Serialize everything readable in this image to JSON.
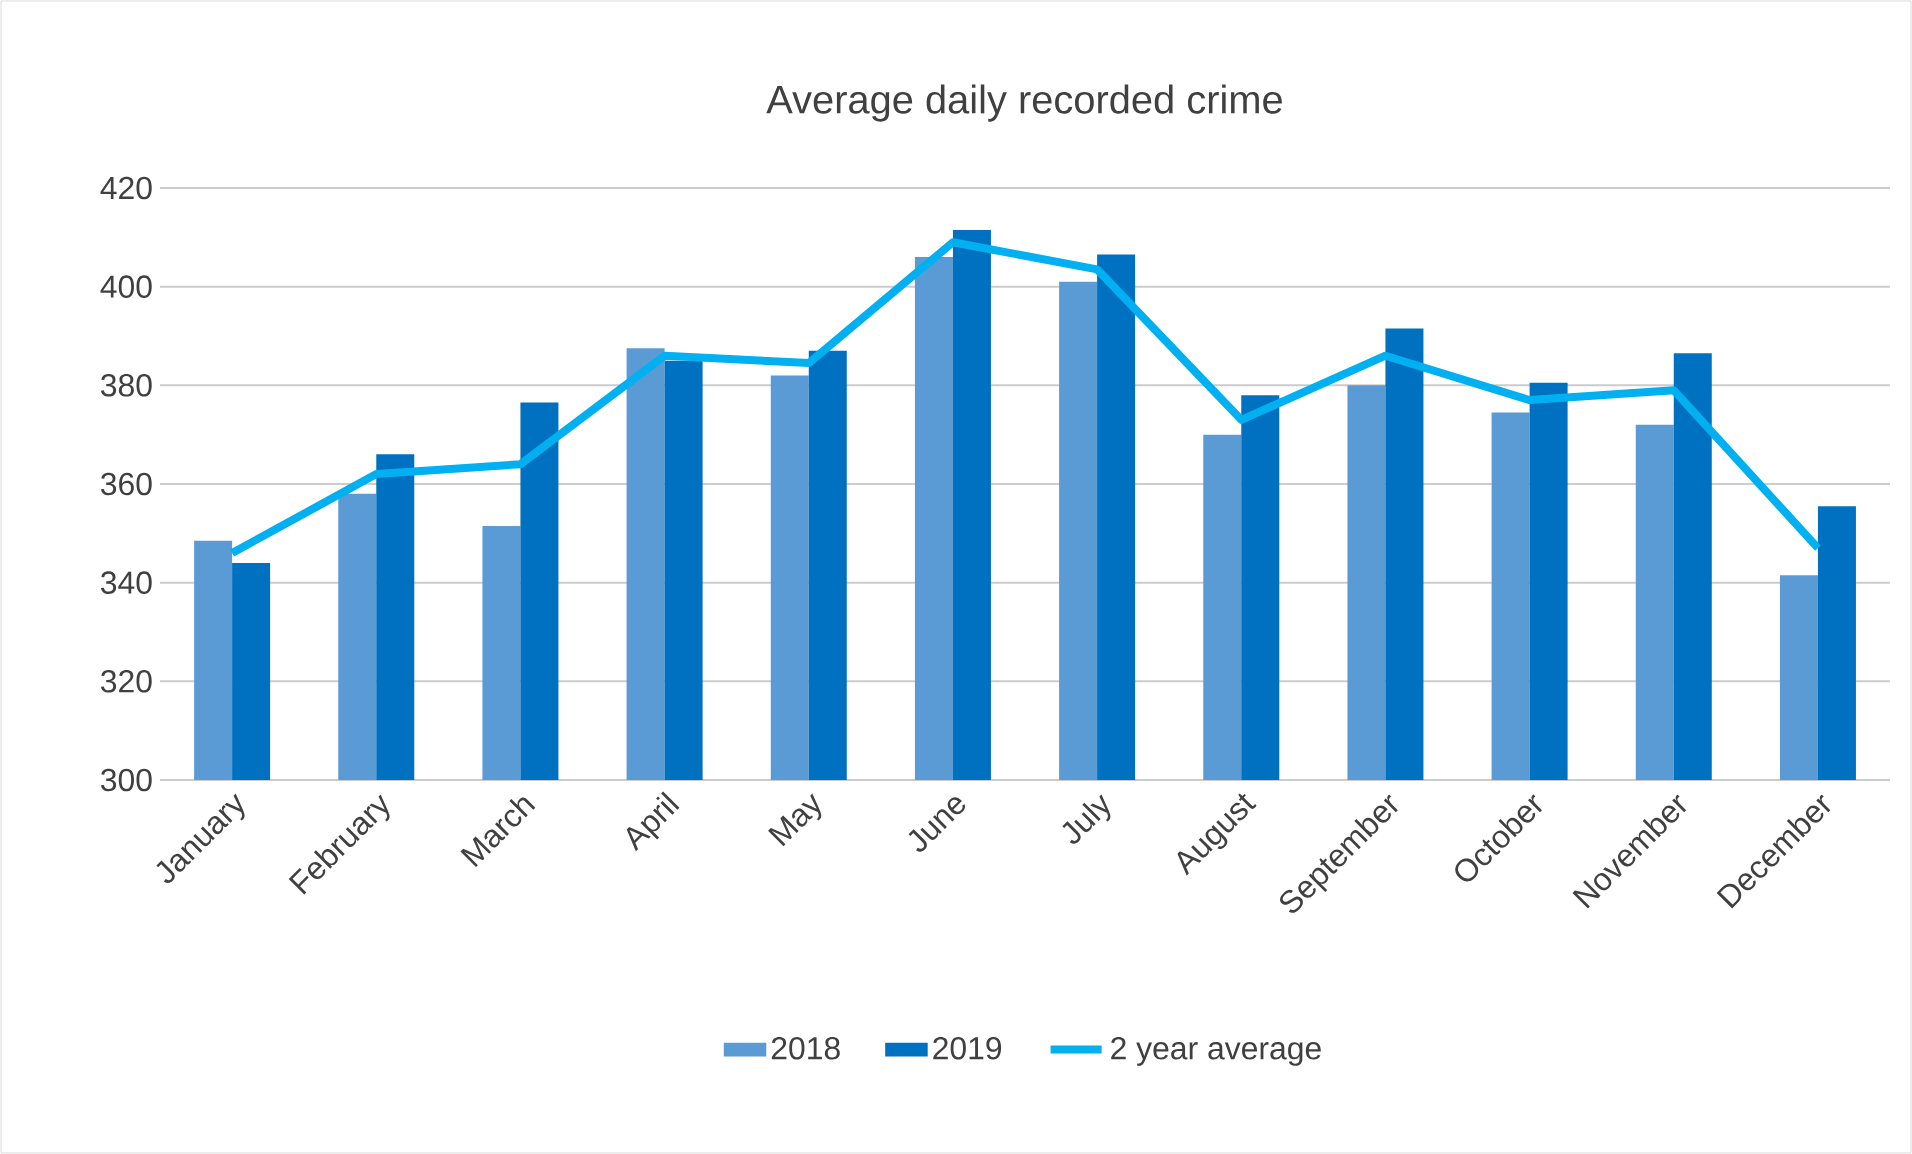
{
  "chart_data": {
    "type": "bar",
    "title": "Average daily recorded crime",
    "categories": [
      "January",
      "February",
      "March",
      "April",
      "May",
      "June",
      "July",
      "August",
      "September",
      "October",
      "November",
      "December"
    ],
    "series": [
      {
        "name": "2018",
        "color": "#5b9bd5",
        "values": [
          348.5,
          358,
          351.5,
          387.5,
          382,
          406,
          401,
          370,
          380,
          374.5,
          372,
          341.5
        ]
      },
      {
        "name": "2019",
        "color": "#0070c0",
        "values": [
          344,
          366,
          376.5,
          385,
          387,
          411.5,
          406.5,
          378,
          391.5,
          380.5,
          386.5,
          355.5
        ]
      },
      {
        "name": "2 year average",
        "type": "line",
        "color": "#00b0f0",
        "values": [
          346,
          362,
          364,
          386,
          384.5,
          409,
          403.5,
          373,
          386,
          377,
          379,
          347
        ]
      }
    ],
    "ylim": [
      300,
      420
    ],
    "yticks": [
      300,
      320,
      340,
      360,
      380,
      400,
      420
    ],
    "grid": "y",
    "legend": "bottom",
    "marker": "none",
    "line_style": "solid"
  }
}
